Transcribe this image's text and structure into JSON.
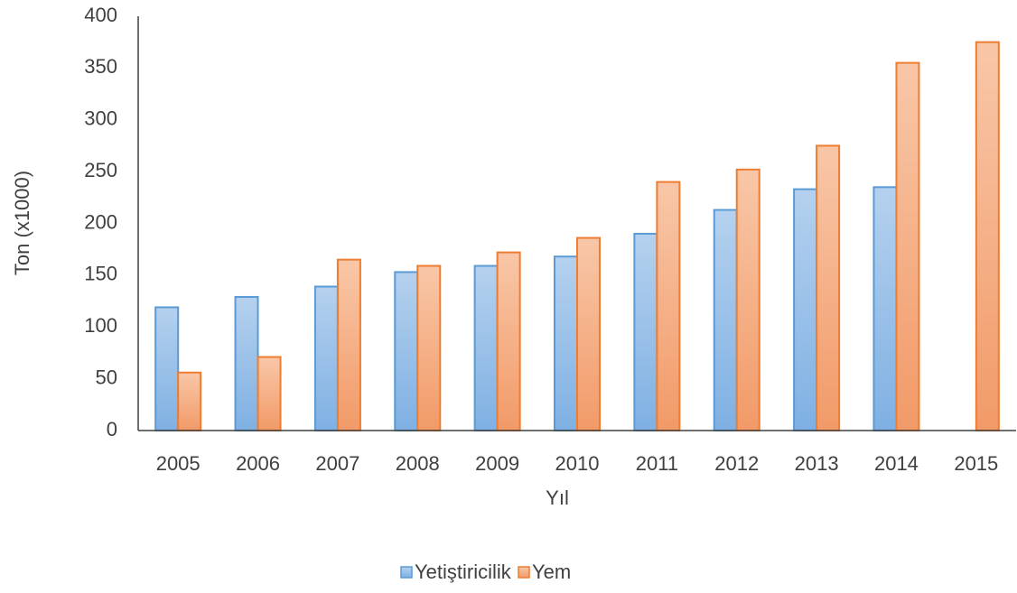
{
  "chart_data": {
    "type": "bar",
    "x_label": "Yıl",
    "y_label": "Ton (x1000)",
    "categories": [
      "2005",
      "2006",
      "2007",
      "2008",
      "2009",
      "2010",
      "2011",
      "2012",
      "2013",
      "2014",
      "2015"
    ],
    "series": [
      {
        "name": "Yetiştiricilik",
        "color": "#5b9bd5",
        "values": [
          119,
          129,
          139,
          153,
          159,
          168,
          190,
          213,
          233,
          235,
          null
        ]
      },
      {
        "name": "Yem",
        "color": "#ed7d31",
        "values": [
          56,
          71,
          165,
          159,
          172,
          186,
          240,
          252,
          275,
          355,
          375
        ]
      }
    ],
    "ylim": [
      0,
      400
    ],
    "yticks": [
      0,
      50,
      100,
      150,
      200,
      250,
      300,
      350,
      400
    ],
    "grid": false,
    "legend": "bottom"
  }
}
